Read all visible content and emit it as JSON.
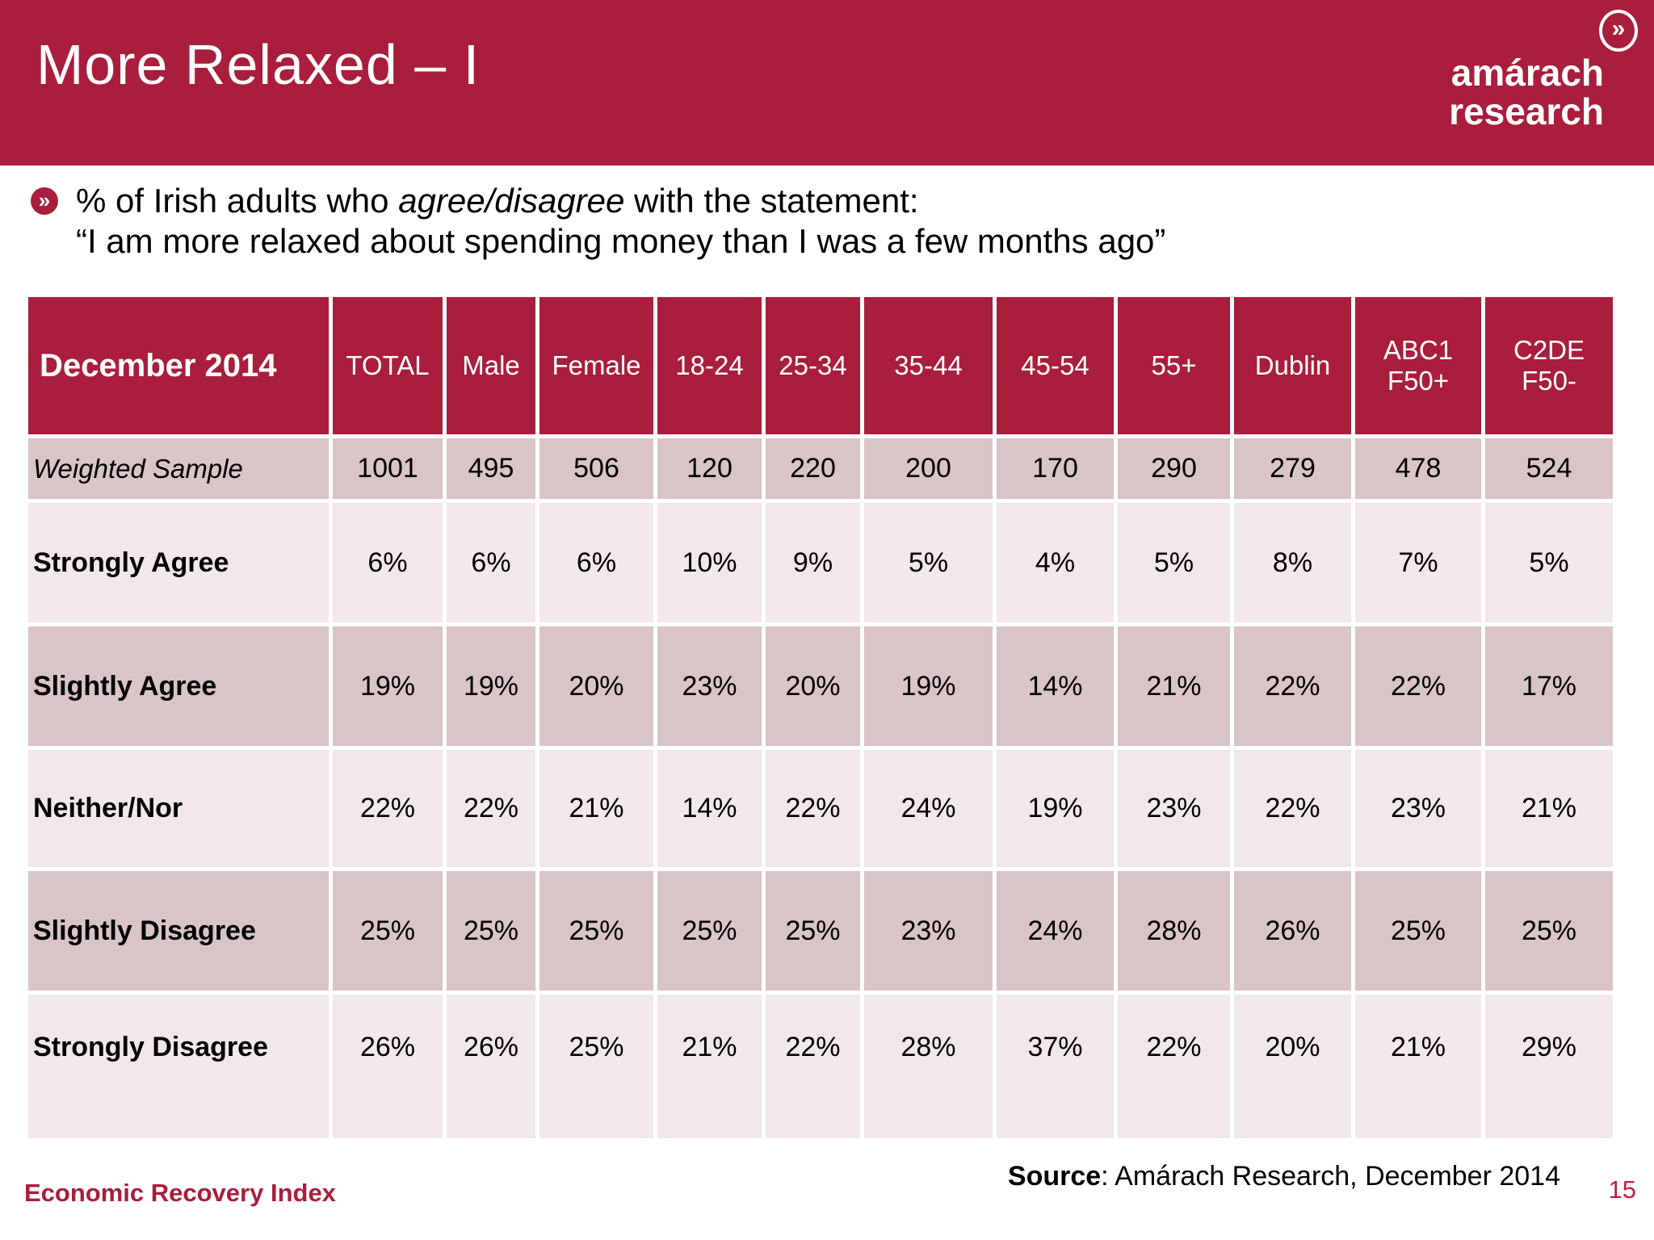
{
  "colors": {
    "brand_red": "#A81E3C",
    "row_dark": "#D9C4C6",
    "row_light": "#F2E8E9"
  },
  "glyphs": {
    "double_chevron": "»"
  },
  "header": {
    "title": "More Relaxed – I",
    "logo_line1": "amárach",
    "logo_line2": "research"
  },
  "intro": {
    "line1_prefix": "% of Irish adults who ",
    "line1_italic": "agree/disagree",
    "line1_suffix": " with the statement:",
    "line2": "“I am more relaxed about spending money than I was a few months ago”"
  },
  "table": {
    "corner_label": "December 2014",
    "columns": [
      "TOTAL",
      "Male",
      "Female",
      "18-24",
      "25-34",
      "35-44",
      "45-54",
      "55+",
      "Dublin",
      "ABC1\nF50+",
      "C2DE\nF50-"
    ],
    "rows": [
      {
        "label": "Weighted Sample",
        "italic": true,
        "values": [
          "1001",
          "495",
          "506",
          "120",
          "220",
          "200",
          "170",
          "290",
          "279",
          "478",
          "524"
        ]
      },
      {
        "label": "Strongly Agree",
        "values": [
          "6%",
          "6%",
          "6%",
          "10%",
          "9%",
          "5%",
          "4%",
          "5%",
          "8%",
          "7%",
          "5%"
        ]
      },
      {
        "label": "Slightly Agree",
        "values": [
          "19%",
          "19%",
          "20%",
          "23%",
          "20%",
          "19%",
          "14%",
          "21%",
          "22%",
          "22%",
          "17%"
        ]
      },
      {
        "label": "Neither/Nor",
        "values": [
          "22%",
          "22%",
          "21%",
          "14%",
          "22%",
          "24%",
          "19%",
          "23%",
          "22%",
          "23%",
          "21%"
        ]
      },
      {
        "label": "Slightly Disagree",
        "values": [
          "25%",
          "25%",
          "25%",
          "25%",
          "25%",
          "23%",
          "24%",
          "28%",
          "26%",
          "25%",
          "25%"
        ]
      },
      {
        "label": "Strongly Disagree",
        "values": [
          "26%",
          "26%",
          "25%",
          "21%",
          "22%",
          "28%",
          "37%",
          "22%",
          "20%",
          "21%",
          "29%"
        ]
      }
    ]
  },
  "footer": {
    "left_text": "Economic Recovery Index",
    "source_label": "Source",
    "source_rest": ": Amárach Research, December 2014",
    "page_number": "15"
  }
}
